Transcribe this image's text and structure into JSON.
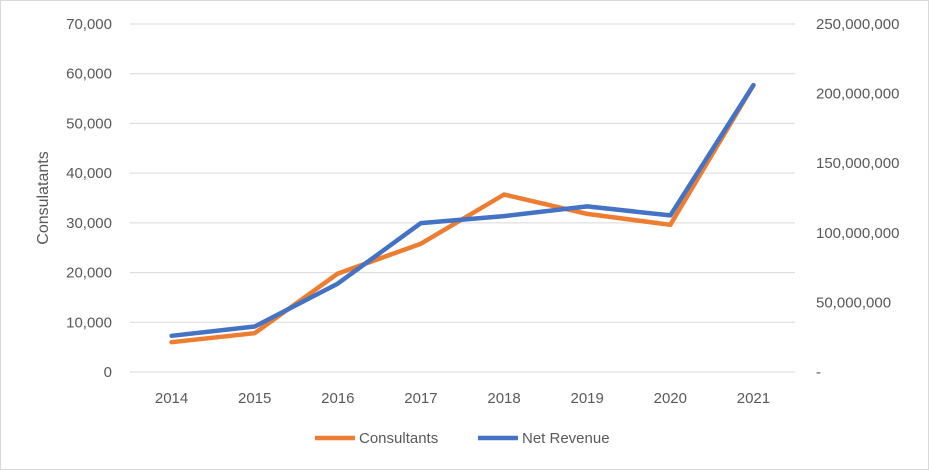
{
  "chart_data": {
    "type": "line",
    "categories": [
      "2014",
      "2015",
      "2016",
      "2017",
      "2018",
      "2019",
      "2020",
      "2021"
    ],
    "ylabel": "Consulatants",
    "y_left_ticks": [
      "0",
      "10,000",
      "20,000",
      "30,000",
      "40,000",
      "50,000",
      "60,000",
      "70,000"
    ],
    "y_right_ticks": [
      "-",
      "50,000,000",
      "100,000,000",
      "150,000,000",
      "200,000,000",
      "250,000,000"
    ],
    "ylim_left": [
      0,
      70000
    ],
    "ylim_right": [
      0,
      250000000
    ],
    "grid": true,
    "legend_position": "bottom",
    "series": [
      {
        "name": "Consultants",
        "axis": "left",
        "color": "#ED7D31",
        "values": [
          6000,
          7800,
          19800,
          25800,
          35700,
          31800,
          29600,
          57700
        ]
      },
      {
        "name": "Net Revenue",
        "axis": "right",
        "color": "#4472C4",
        "values": [
          26000000,
          32700000,
          63500000,
          107000000,
          112000000,
          119000000,
          112500000,
          206000000
        ]
      }
    ]
  }
}
